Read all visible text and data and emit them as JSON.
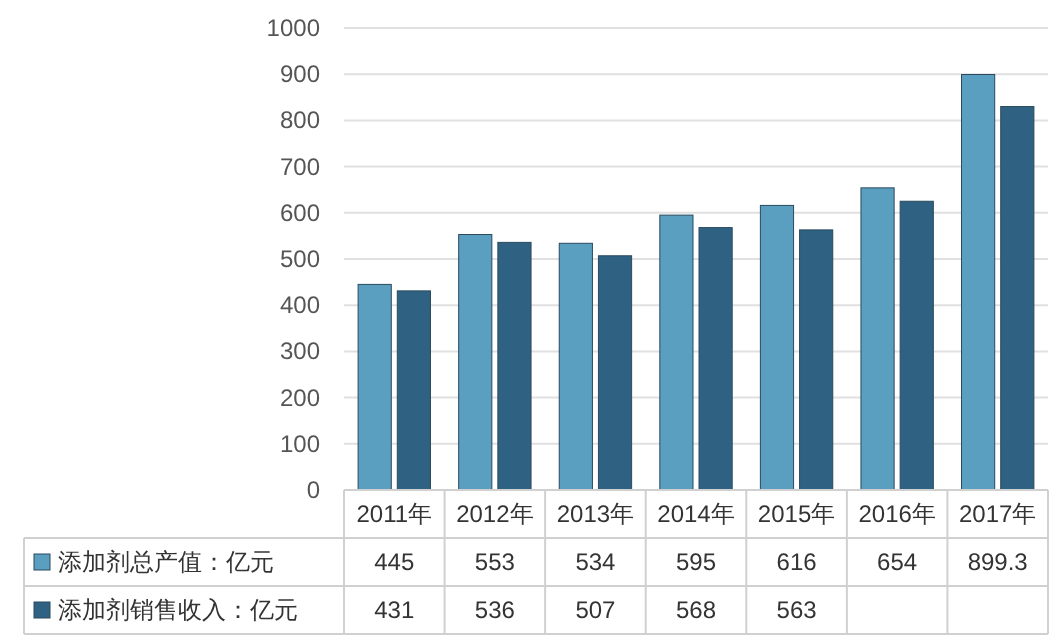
{
  "chart_data": {
    "type": "bar",
    "categories": [
      "2011年",
      "2012年",
      "2013年",
      "2014年",
      "2015年",
      "2016年",
      "2017年"
    ],
    "series": [
      {
        "name": "添加剂总产值：亿元",
        "color": "#5b9fc0",
        "values": [
          445,
          553,
          534,
          595,
          616,
          654,
          899.3
        ],
        "value_labels": [
          "445",
          "553",
          "534",
          "595",
          "616",
          "654",
          "899.3"
        ]
      },
      {
        "name": "添加剂销售收入：亿元",
        "color": "#2f6282",
        "values": [
          431,
          536,
          507,
          568,
          563,
          625,
          830
        ],
        "value_labels": [
          "431",
          "536",
          "507",
          "568",
          "563",
          null,
          null
        ]
      }
    ],
    "ylim": [
      0,
      1000
    ],
    "yticks": [
      0,
      100,
      200,
      300,
      400,
      500,
      600,
      700,
      800,
      900,
      1000
    ],
    "grid": "y",
    "legend": "bottom"
  }
}
